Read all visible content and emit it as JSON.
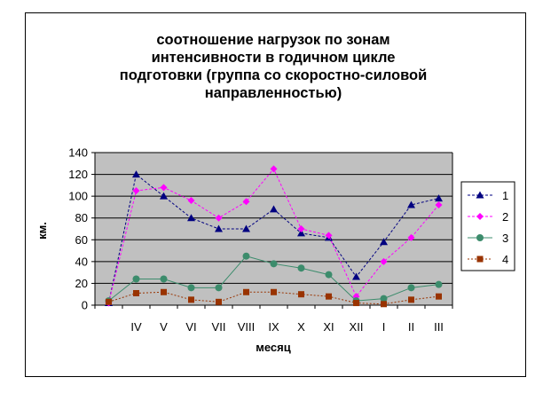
{
  "chart_data": {
    "type": "line",
    "title": [
      "соотношение нагрузок по зонам",
      "интенсивности в годичном цикле",
      "подготовки (группа со скоростно-силовой",
      "направленностью)"
    ],
    "xlabel": "месяц",
    "ylabel": "км.",
    "categories": [
      "",
      "IV",
      "V",
      "VI",
      "VII",
      "VIII",
      "IX",
      "X",
      "XI",
      "XII",
      "I",
      "II",
      "III"
    ],
    "ylim": [
      0,
      140
    ],
    "yticks": [
      0,
      20,
      40,
      60,
      80,
      100,
      120,
      140
    ],
    "grid": true,
    "legend_position": "right",
    "series": [
      {
        "name": "1",
        "color": "#000080",
        "marker": "triangle",
        "dash": "3,2",
        "values": [
          2,
          120,
          100,
          80,
          70,
          70,
          88,
          66,
          62,
          26,
          58,
          92,
          98
        ]
      },
      {
        "name": "2",
        "color": "#ff00ff",
        "marker": "diamond",
        "dash": "3,2",
        "values": [
          2,
          105,
          108,
          96,
          80,
          95,
          125,
          70,
          64,
          8,
          40,
          62,
          92
        ]
      },
      {
        "name": "3",
        "color": "#3c8c6c",
        "marker": "circle",
        "dash": "",
        "values": [
          4,
          24,
          24,
          16,
          16,
          45,
          38,
          34,
          28,
          4,
          6,
          16,
          19
        ]
      },
      {
        "name": "4",
        "color": "#993300",
        "marker": "square",
        "dash": "2,2",
        "values": [
          3,
          11,
          12,
          5,
          3,
          12,
          12,
          10,
          8,
          2,
          1,
          5,
          8
        ]
      }
    ]
  }
}
